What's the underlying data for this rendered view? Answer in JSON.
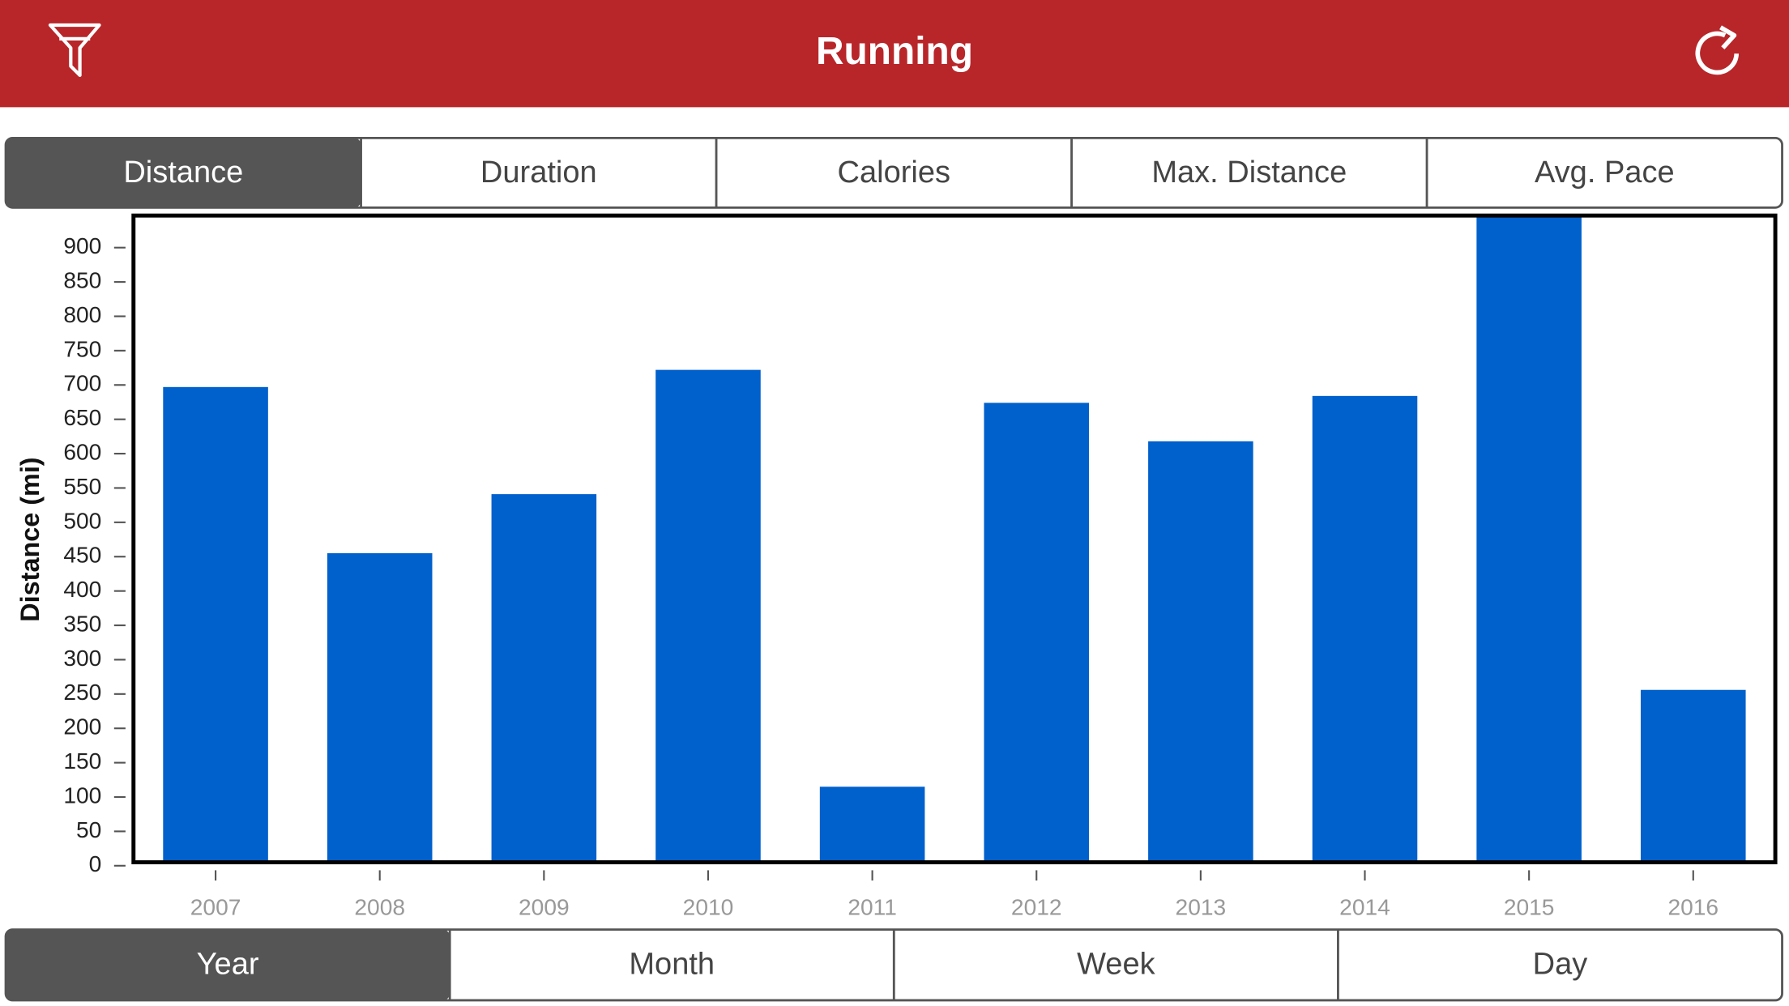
{
  "header": {
    "title": "Running"
  },
  "metric_tabs": [
    "Distance",
    "Duration",
    "Calories",
    "Max. Distance",
    "Avg. Pace"
  ],
  "period_tabs": [
    "Year",
    "Month",
    "Week",
    "Day"
  ],
  "chart_data": {
    "type": "bar",
    "y_label": "Distance (mi)",
    "categories": [
      "2007",
      "2008",
      "2009",
      "2010",
      "2011",
      "2012",
      "2013",
      "2014",
      "2015",
      "2016"
    ],
    "values": [
      697,
      455,
      541,
      722,
      115,
      674,
      618,
      684,
      950,
      256
    ],
    "color": "#0060cc",
    "ylim": [
      0,
      945
    ],
    "yticks": [
      0,
      50,
      100,
      150,
      200,
      250,
      300,
      350,
      400,
      450,
      500,
      550,
      600,
      650,
      700,
      750,
      800,
      850,
      900
    ]
  }
}
